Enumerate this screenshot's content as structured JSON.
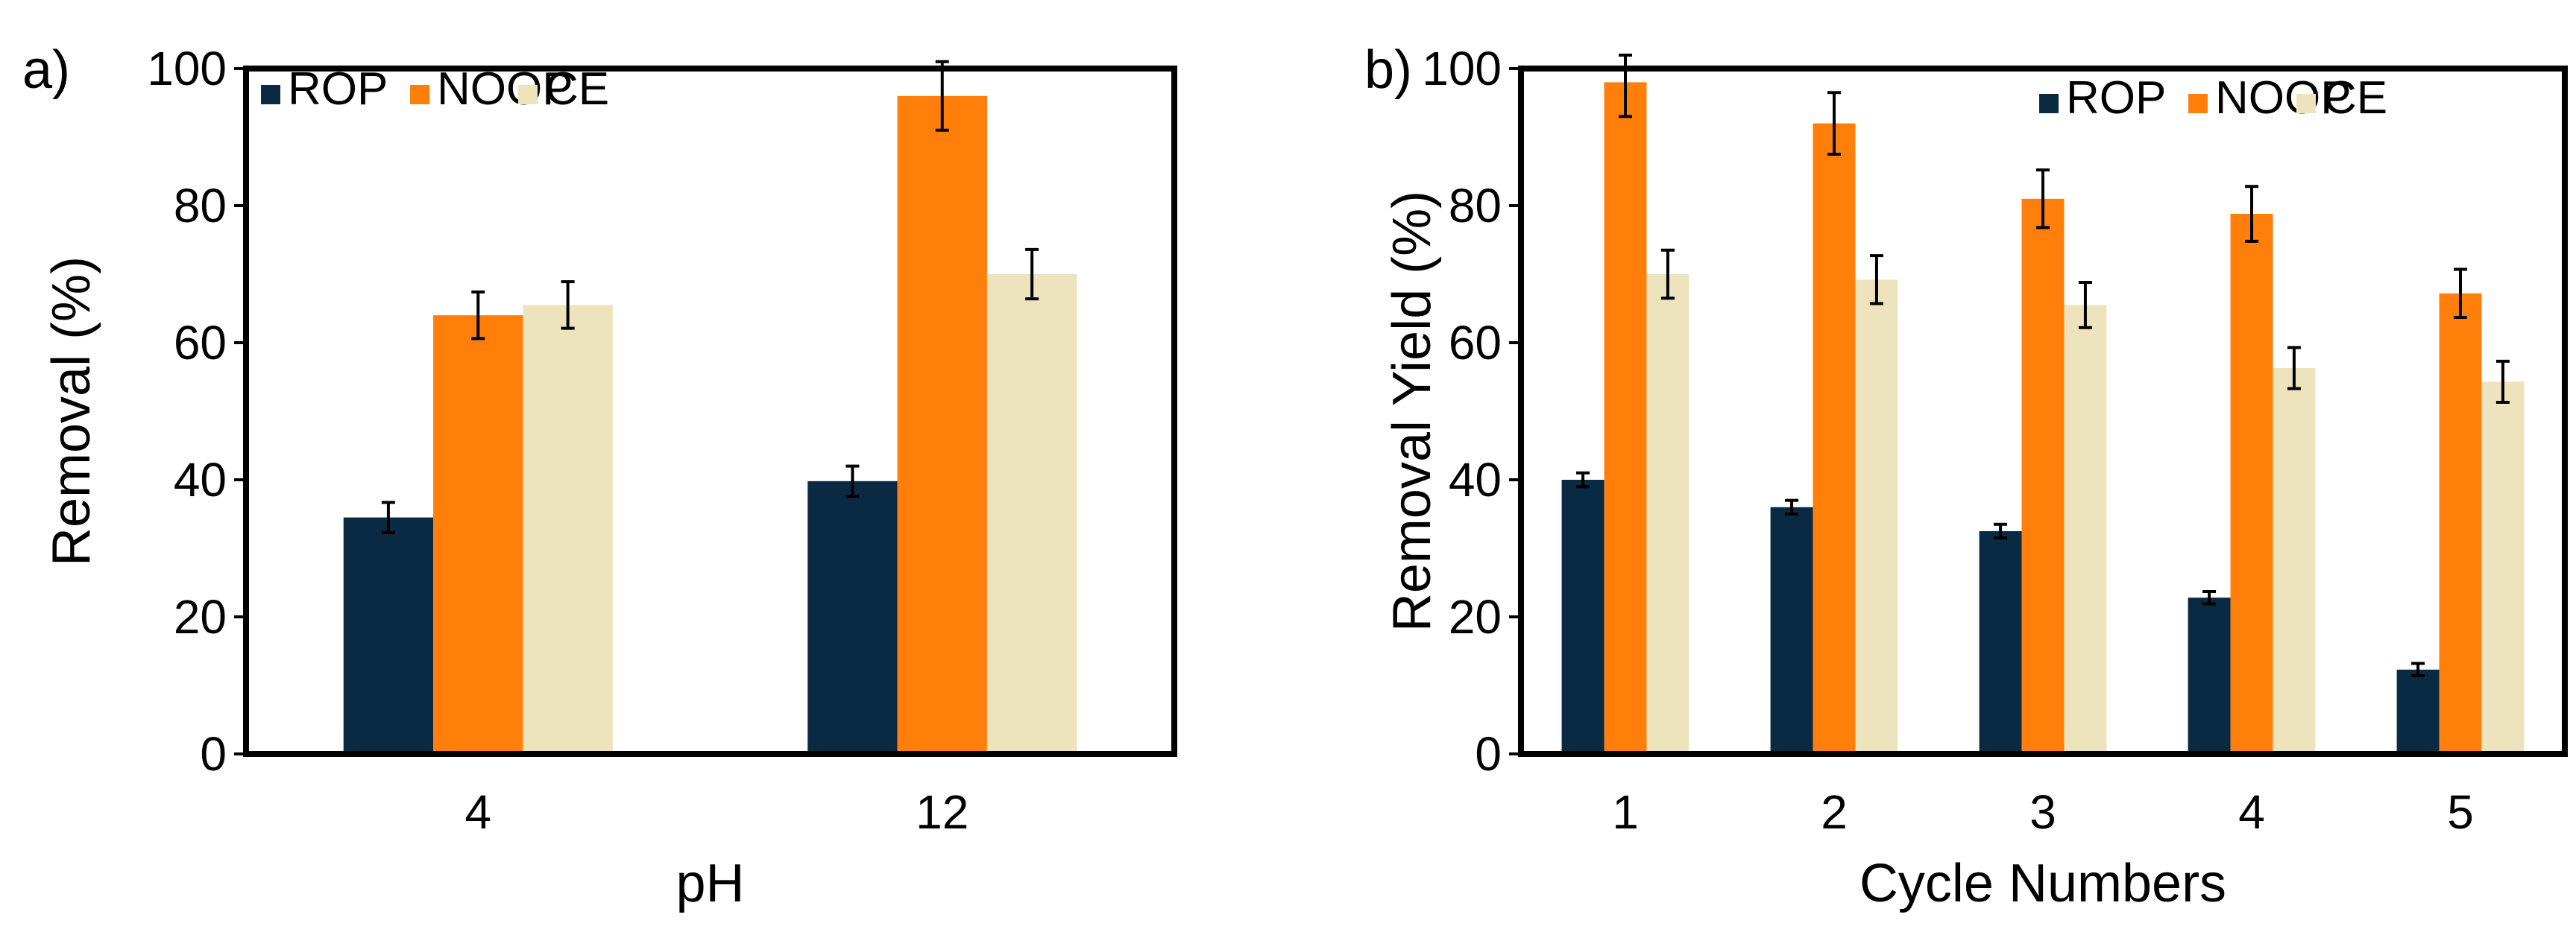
{
  "colors": {
    "ROP": "#0a2a44",
    "NOOP": "#ff7f0a",
    "CE": "#ede3bd",
    "axis": "#000000",
    "error": "#000000"
  },
  "chart_data": [
    {
      "panel_label": "a)",
      "type": "bar",
      "title": "",
      "xlabel": "pH",
      "ylabel": "Removal (%)",
      "ylim": [
        0,
        100
      ],
      "yticks": [
        "0",
        "20",
        "40",
        "60",
        "80",
        "100"
      ],
      "categories": [
        "4",
        "12"
      ],
      "legend_position": "top-left",
      "series": [
        {
          "name": "ROP",
          "values": [
            34.5,
            39.8
          ],
          "errors": [
            2.2,
            2.2
          ]
        },
        {
          "name": "NOOP",
          "values": [
            64.0,
            96.0
          ],
          "errors": [
            3.4,
            5.0
          ]
        },
        {
          "name": "CE",
          "values": [
            65.5,
            70.0
          ],
          "errors": [
            3.4,
            3.6
          ]
        }
      ]
    },
    {
      "panel_label": "b)",
      "type": "bar",
      "title": "",
      "xlabel": "Cycle Numbers",
      "ylabel": "Removal Yield (%)",
      "ylim": [
        0,
        100
      ],
      "yticks": [
        "0",
        "20",
        "40",
        "60",
        "80",
        "100"
      ],
      "categories": [
        "1",
        "2",
        "3",
        "4",
        "5"
      ],
      "legend_position": "top-right",
      "series": [
        {
          "name": "ROP",
          "values": [
            40.0,
            36.0,
            32.5,
            22.8,
            12.3
          ],
          "errors": [
            1.0,
            1.0,
            1.0,
            0.9,
            0.9
          ]
        },
        {
          "name": "NOOP",
          "values": [
            98.0,
            92.0,
            81.0,
            78.8,
            67.2
          ],
          "errors": [
            5.0,
            4.5,
            4.2,
            4.0,
            3.5
          ]
        },
        {
          "name": "CE",
          "values": [
            70.0,
            69.2,
            65.5,
            56.3,
            54.3
          ],
          "errors": [
            3.5,
            3.5,
            3.3,
            3.0,
            3.0
          ]
        }
      ]
    }
  ]
}
